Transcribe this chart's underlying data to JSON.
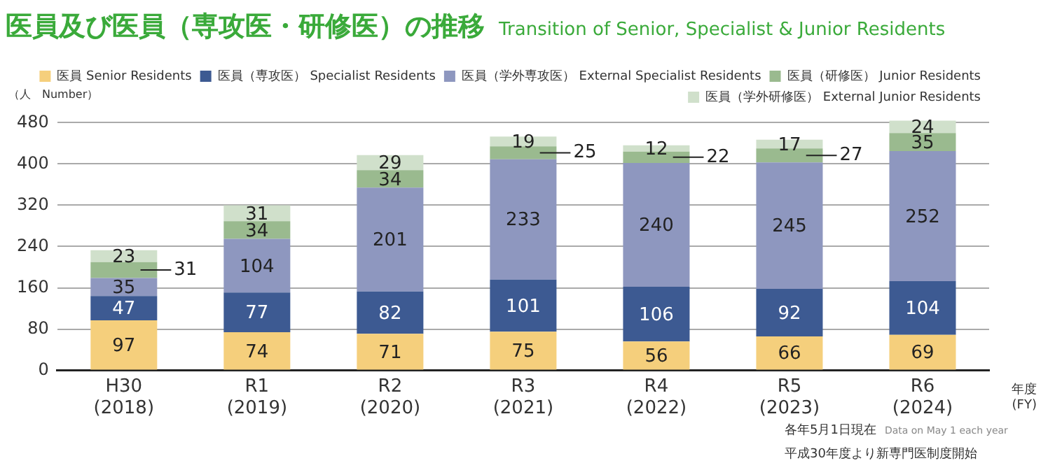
{
  "chart_data": {
    "type": "bar",
    "title": "医員及び医員（専攻医・研修医）の推移",
    "subtitle": "Transition of Senior, Specialist & Junior Residents",
    "ylabel": "（人　Number）",
    "xlabel": "年度\n(FY)",
    "categories": [
      "H30\n(2018)",
      "R1\n(2019)",
      "R2\n(2020)",
      "R3\n(2021)",
      "R4\n(2022)",
      "R5\n(2023)",
      "R6\n(2024)"
    ],
    "stacked": true,
    "series": [
      {
        "name": "医員 Senior Residents",
        "color": "#f5cf7c",
        "values": [
          97,
          74,
          71,
          75,
          56,
          66,
          69
        ]
      },
      {
        "name": "医員（専攻医） Specialist Residents",
        "color": "#3d5a92",
        "values": [
          47,
          77,
          82,
          101,
          106,
          92,
          104
        ]
      },
      {
        "name": "医員（学外専攻医） External Specialist Residents",
        "color": "#8e97bf",
        "values": [
          35,
          104,
          201,
          233,
          240,
          245,
          252
        ]
      },
      {
        "name": "医員（研修医） Junior Residents",
        "color": "#9aba8f",
        "values": [
          31,
          34,
          34,
          25,
          22,
          27,
          35
        ]
      },
      {
        "name": "医員（学外研修医） External Junior Residents",
        "color": "#d0e0cb",
        "values": [
          23,
          31,
          29,
          19,
          12,
          17,
          24
        ]
      }
    ],
    "ylim": [
      0,
      490
    ],
    "yticks": [
      0,
      80,
      160,
      240,
      320,
      400,
      480
    ],
    "grid": "y",
    "legend": "top",
    "data_labels": true,
    "annotations": [
      "各年5月1日現在 Data on May 1 each year",
      "平成30年度より新専門医制度開始"
    ]
  }
}
